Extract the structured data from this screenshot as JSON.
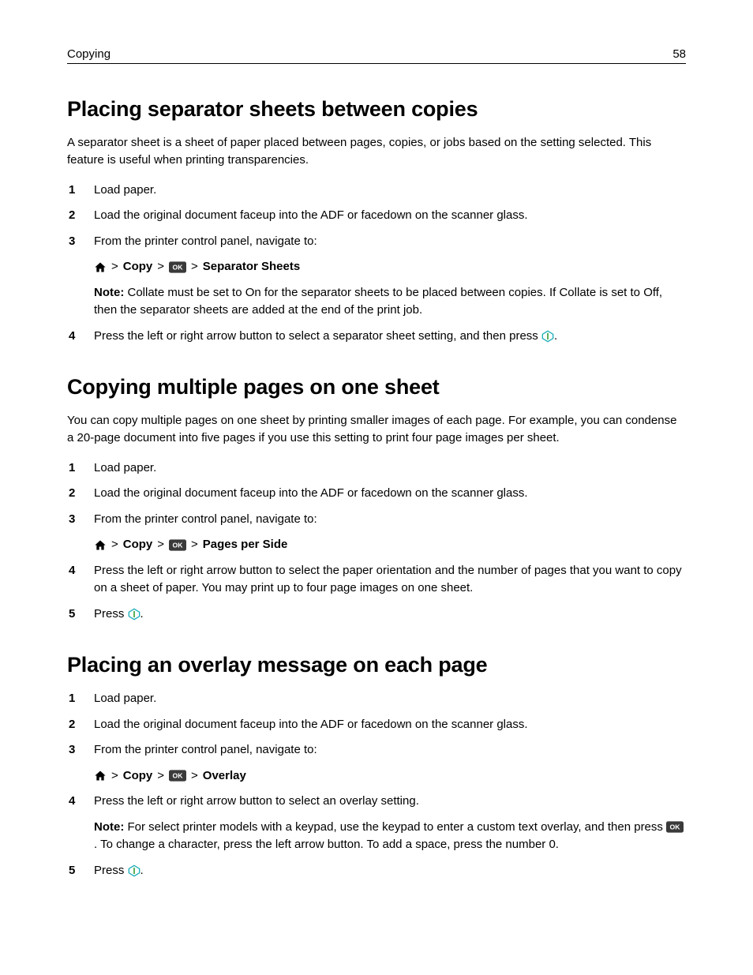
{
  "header": {
    "section": "Copying",
    "page_number": "58"
  },
  "icons": {
    "home_color": "#000000",
    "ok_bg": "#3a3a3a",
    "ok_fg": "#ffffff",
    "start_stroke": "#1caeb8",
    "start_fill": "#ffffff",
    "start_bar": "#3aa03a"
  },
  "s1": {
    "title": "Placing separator sheets between copies",
    "intro": "A separator sheet is a sheet of paper placed between pages, copies, or jobs based on the setting selected. This feature is useful when printing transparencies.",
    "steps": {
      "step1": "Load paper.",
      "step2": "Load the original document faceup into the ADF or facedown on the scanner glass.",
      "step3": "From the printer control panel, navigate to:",
      "nav_copy": "Copy",
      "nav_target": "Separator Sheets",
      "note_label": "Note:",
      "note_text": " Collate must be set to On for the separator sheets to be placed between copies. If Collate is set to Off, then the separator sheets are added at the end of the print job.",
      "step4_a": "Press the left or right arrow button to select a separator sheet setting, and then press ",
      "step4_b": "."
    }
  },
  "s2": {
    "title": "Copying multiple pages on one sheet",
    "intro": "You can copy multiple pages on one sheet by printing smaller images of each page. For example, you can condense a 20‑page document into five pages if you use this setting to print four page images per sheet.",
    "steps": {
      "step1": "Load paper.",
      "step2": "Load the original document faceup into the ADF or facedown on the scanner glass.",
      "step3": "From the printer control panel, navigate to:",
      "nav_copy": "Copy",
      "nav_target": "Pages per Side",
      "step4": "Press the left or right arrow button to select the paper orientation and the number of pages that you want to copy on a sheet of paper. You may print up to four page images on one sheet.",
      "step5_a": "Press ",
      "step5_b": "."
    }
  },
  "s3": {
    "title": "Placing an overlay message on each page",
    "steps": {
      "step1": "Load paper.",
      "step2": "Load the original document faceup into the ADF or facedown on the scanner glass.",
      "step3": "From the printer control panel, navigate to:",
      "nav_copy": "Copy",
      "nav_target": "Overlay",
      "step4": "Press the left or right arrow button to select an overlay setting.",
      "note_label": "Note:",
      "note_text_a": " For select printer models with a keypad, use the keypad to enter a custom text overlay, and then press ",
      "note_text_b": ". To change a character, press the left arrow button. To add a space, press the number 0.",
      "step5_a": "Press ",
      "step5_b": "."
    }
  }
}
